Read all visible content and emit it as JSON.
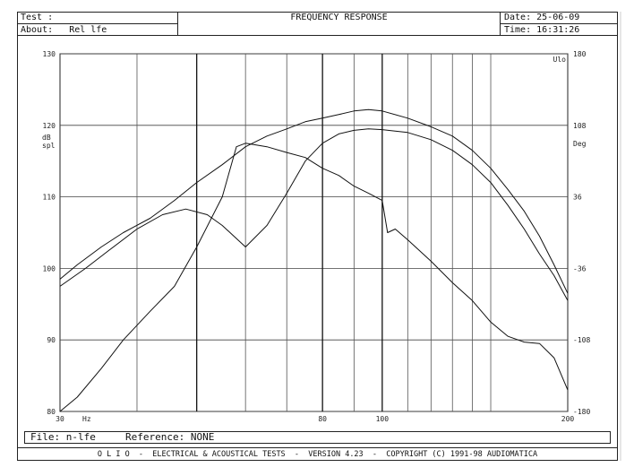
{
  "header": {
    "test_label": "Test :",
    "about_label": "About:",
    "about_value": "Rel lfe",
    "title": "FREQUENCY RESPONSE",
    "date_label": "Date:",
    "date_value": "25-06-09",
    "time_label": "Time:",
    "time_value": "16:31:26"
  },
  "file_bar": {
    "file_label": "File:",
    "file_value": "n-lfe",
    "reference_label": "Reference:",
    "reference_value": "NONE"
  },
  "footer_text": "O L I O  -  ELECTRICAL & ACOUSTICAL TESTS  -  VERSION 4.23  -  COPYRIGHT (C) 1991-98 AUDIOMATICA",
  "chart_data": {
    "type": "line",
    "title": "FREQUENCY RESPONSE",
    "xscale": "log",
    "xlim": [
      30,
      200
    ],
    "x_tick_labels": [
      {
        "value": 30,
        "label": "30"
      },
      {
        "value": 80,
        "label": "80"
      },
      {
        "value": 100,
        "label": "100"
      },
      {
        "value": 200,
        "label": "200"
      }
    ],
    "x_unit_label": "Hz",
    "x_gridlines": [
      40,
      50,
      60,
      70,
      80,
      90,
      100,
      110,
      120,
      130,
      140,
      150
    ],
    "ylim": [
      80,
      130
    ],
    "y_ticks": [
      130,
      120,
      110,
      100,
      90,
      80
    ],
    "ylabel": "dB spl",
    "y2lim": [
      -180,
      180
    ],
    "y2_ticks": [
      180,
      108,
      36,
      -36,
      -108,
      -180
    ],
    "y2label": "Deg",
    "corner_label": "Ulo",
    "grid": true,
    "series": [
      {
        "axis": "left",
        "x": [
          30,
          32,
          35,
          38,
          42,
          46,
          50,
          55,
          60,
          65,
          70,
          75,
          80,
          85,
          90,
          95,
          100,
          110,
          120,
          130,
          140,
          150,
          160,
          170,
          180,
          190,
          200
        ],
        "y": [
          98.5,
          100.5,
          103,
          105,
          107,
          109.5,
          112,
          114.5,
          117,
          118.5,
          119.5,
          120.5,
          121,
          121.5,
          122,
          122.2,
          122,
          121,
          119.8,
          118.5,
          116.5,
          114,
          111,
          108,
          104.5,
          100.5,
          96.5
        ]
      },
      {
        "axis": "left",
        "x": [
          30,
          33,
          36,
          40,
          44,
          48,
          52,
          55,
          60,
          65,
          70,
          75,
          80,
          85,
          90,
          95,
          100,
          105,
          110,
          120,
          130,
          140,
          150,
          160,
          170,
          180,
          190,
          200
        ],
        "y": [
          97.5,
          100,
          102.5,
          105.5,
          107.5,
          108.3,
          107.5,
          106,
          103,
          106,
          110.5,
          115,
          117.5,
          118.8,
          119.3,
          119.5,
          119.4,
          119.2,
          119,
          118,
          116.5,
          114.5,
          112,
          108.8,
          105.5,
          102,
          99,
          95.5
        ]
      },
      {
        "axis": "left",
        "x": [
          30,
          32,
          35,
          38,
          42,
          46,
          50,
          55,
          58,
          60,
          65,
          70,
          75,
          80,
          85,
          90,
          95,
          100,
          102,
          105,
          110,
          120,
          130,
          140,
          150,
          160,
          170,
          180,
          190,
          200
        ],
        "y": [
          80,
          82,
          86,
          90,
          94,
          97.5,
          103,
          110,
          117,
          117.5,
          117,
          116.2,
          115.5,
          114,
          113,
          111.5,
          110.5,
          109.5,
          105,
          105.5,
          104,
          101,
          98,
          95.5,
          92.5,
          90.5,
          89.7,
          89.5,
          87.5,
          83
        ]
      }
    ]
  }
}
